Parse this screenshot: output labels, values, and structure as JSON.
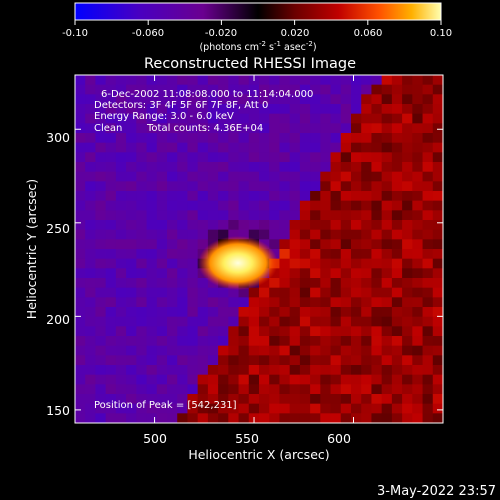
{
  "colorbar": {
    "ticks": [
      "-0.10",
      "-0.060",
      "-0.020",
      "0.020",
      "0.060",
      "0.10"
    ],
    "tick_values": [
      -0.1,
      -0.06,
      -0.02,
      0.02,
      0.06,
      0.1
    ],
    "range": [
      -0.1,
      0.1
    ],
    "unit_base": "(photons cm",
    "unit_exp1": "-2",
    "unit_mid1": " s",
    "unit_exp2": "-1",
    "unit_mid2": " asec",
    "unit_exp3": "-2",
    "unit_end": ")",
    "colors": [
      "#0000ff",
      "#4a00c0",
      "#6a0090",
      "#000000",
      "#6a0000",
      "#c00000",
      "#ff5000",
      "#ffb000",
      "#ffffb0"
    ]
  },
  "title": "Reconstructed RHESSI Image",
  "info": {
    "line1": "6-Dec-2002 11:08:08.000 to 11:14:04.000",
    "line2": "Detectors: 3F 4F 5F 6F 7F 8F, Att 0",
    "line3": "Energy Range: 3.0 - 6.0 keV",
    "line4_a": "Clean",
    "line4_b": "Total counts: 4.36E+04",
    "peak": "Position of Peak = [542,231]"
  },
  "footer": {
    "timestamp": "3-May-2022 23:57"
  },
  "chart_data": {
    "type": "heatmap",
    "title": "Reconstructed RHESSI Image",
    "xlabel": "Heliocentric X (arcsec)",
    "ylabel": "Heliocentric Y (arcsec)",
    "xlim": [
      460,
      645
    ],
    "ylim": [
      143,
      329
    ],
    "x_ticks": [
      500,
      550,
      600
    ],
    "y_ticks": [
      150,
      200,
      250,
      300
    ],
    "peak": {
      "x": 542,
      "y": 231
    },
    "colorbar_range": [
      -0.1,
      0.1
    ],
    "colormap": "blue-purple-black-red-yellow-white"
  }
}
